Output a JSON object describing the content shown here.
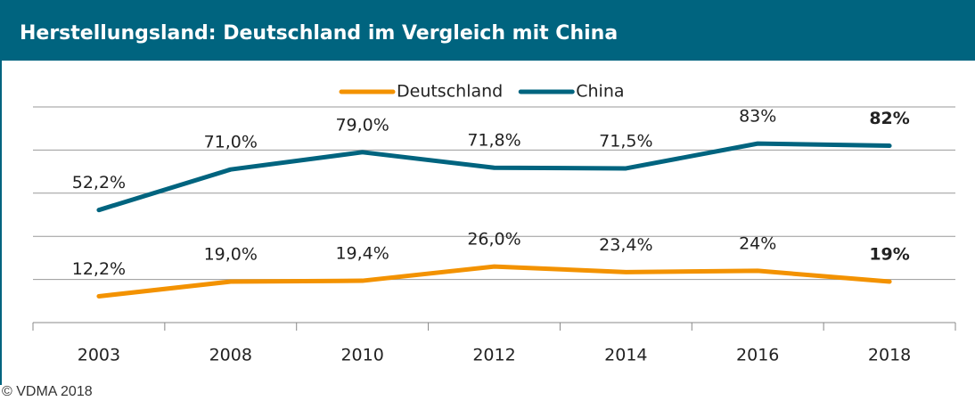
{
  "chart_data": {
    "type": "line",
    "title": "Herstellungsland: Deutschland im Vergleich mit China",
    "categories": [
      "2003",
      "2008",
      "2010",
      "2012",
      "2014",
      "2016",
      "2018"
    ],
    "series": [
      {
        "name": "Deutschland",
        "color": "#f39200",
        "values": [
          12.2,
          19.0,
          19.4,
          26.0,
          23.4,
          24,
          19
        ],
        "value_labels": [
          "12,2%",
          "19,0%",
          "19,4%",
          "26,0%",
          "23,4%",
          "24%",
          "19%"
        ]
      },
      {
        "name": "China",
        "color": "#00647f",
        "values": [
          52.2,
          71.0,
          79.0,
          71.8,
          71.5,
          83,
          82
        ],
        "value_labels": [
          "52,2%",
          "71,0%",
          "79,0%",
          "71,8%",
          "71,5%",
          "83%",
          "82%"
        ]
      }
    ],
    "ylim": [
      0,
      100
    ],
    "yticks": [
      0,
      20,
      40,
      60,
      80,
      100
    ],
    "grid": true,
    "legend": "top",
    "footer": "© VDMA 2018"
  }
}
